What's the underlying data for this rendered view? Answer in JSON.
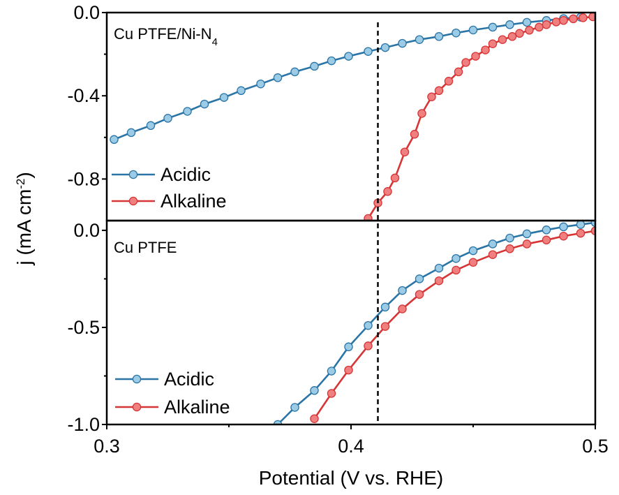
{
  "chart_data": {
    "type": "line",
    "xlabel": "Potential (V vs. RHE)",
    "ylabel": "j (mA cm",
    "ylabel_superscript": "-2",
    "ylabel_close": ")",
    "xlim": [
      0.3,
      0.5
    ],
    "xticks": [
      "0.3",
      "0.4",
      "0.5"
    ],
    "reference_line_x": 0.411,
    "panels": [
      {
        "label_main": "Cu PTFE/Ni-N",
        "label_subscript": "4",
        "ylim": [
          -1.0,
          0.0
        ],
        "yticks": [
          {
            "value": 0.0,
            "label": "0.0"
          },
          {
            "value": -0.4,
            "label": "-0.4"
          },
          {
            "value": -0.8,
            "label": "-0.8"
          }
        ],
        "series": [
          {
            "name": "Acidic",
            "color": "#2a75a6",
            "marker_fill": "#9ccbe6",
            "x": [
              0.303,
              0.31,
              0.318,
              0.325,
              0.333,
              0.34,
              0.348,
              0.355,
              0.363,
              0.37,
              0.377,
              0.385,
              0.392,
              0.399,
              0.407,
              0.414,
              0.421,
              0.428,
              0.436,
              0.443,
              0.45,
              0.458,
              0.465,
              0.472,
              0.48,
              0.487,
              0.494
            ],
            "y": [
              -0.61,
              -0.577,
              -0.543,
              -0.508,
              -0.475,
              -0.44,
              -0.408,
              -0.375,
              -0.343,
              -0.313,
              -0.285,
              -0.258,
              -0.232,
              -0.21,
              -0.187,
              -0.168,
              -0.148,
              -0.13,
              -0.115,
              -0.098,
              -0.084,
              -0.07,
              -0.058,
              -0.047,
              -0.038,
              -0.029,
              -0.022
            ]
          },
          {
            "name": "Alkaline",
            "color": "#d63535",
            "marker_fill": "#f08080",
            "x": [
              0.407,
              0.411,
              0.415,
              0.418,
              0.422,
              0.426,
              0.429,
              0.433,
              0.436,
              0.44,
              0.444,
              0.447,
              0.451,
              0.455,
              0.458,
              0.462,
              0.466,
              0.469,
              0.473,
              0.477,
              0.48,
              0.484,
              0.487,
              0.491,
              0.495,
              0.499
            ],
            "y": [
              -0.99,
              -0.915,
              -0.86,
              -0.795,
              -0.67,
              -0.585,
              -0.485,
              -0.405,
              -0.375,
              -0.33,
              -0.285,
              -0.24,
              -0.21,
              -0.18,
              -0.15,
              -0.13,
              -0.115,
              -0.1,
              -0.085,
              -0.07,
              -0.058,
              -0.045,
              -0.038,
              -0.03,
              -0.025,
              -0.02
            ]
          }
        ]
      },
      {
        "label_main": "Cu PTFE",
        "label_subscript": "",
        "ylim": [
          -1.0,
          0.05
        ],
        "yticks": [
          {
            "value": 0.0,
            "label": "0.0"
          },
          {
            "value": -0.5,
            "label": "-0.5"
          },
          {
            "value": -1.0,
            "label": "-1.0"
          }
        ],
        "series": [
          {
            "name": "Acidic",
            "color": "#2a75a6",
            "marker_fill": "#9ccbe6",
            "x": [
              0.37,
              0.377,
              0.385,
              0.392,
              0.399,
              0.407,
              0.414,
              0.421,
              0.428,
              0.436,
              0.443,
              0.45,
              0.458,
              0.465,
              0.472,
              0.48,
              0.487,
              0.494,
              0.5
            ],
            "y": [
              -1.0,
              -0.912,
              -0.825,
              -0.725,
              -0.6,
              -0.49,
              -0.395,
              -0.31,
              -0.25,
              -0.195,
              -0.145,
              -0.105,
              -0.07,
              -0.04,
              -0.018,
              0.002,
              0.018,
              0.03,
              0.04
            ]
          },
          {
            "name": "Alkaline",
            "color": "#d63535",
            "marker_fill": "#f08080",
            "x": [
              0.385,
              0.392,
              0.399,
              0.407,
              0.414,
              0.421,
              0.428,
              0.436,
              0.443,
              0.45,
              0.458,
              0.465,
              0.472,
              0.48,
              0.487,
              0.494,
              0.5
            ],
            "y": [
              -0.97,
              -0.84,
              -0.72,
              -0.595,
              -0.495,
              -0.405,
              -0.33,
              -0.26,
              -0.205,
              -0.165,
              -0.125,
              -0.095,
              -0.07,
              -0.05,
              -0.03,
              -0.015,
              -0.003
            ]
          }
        ]
      }
    ]
  }
}
